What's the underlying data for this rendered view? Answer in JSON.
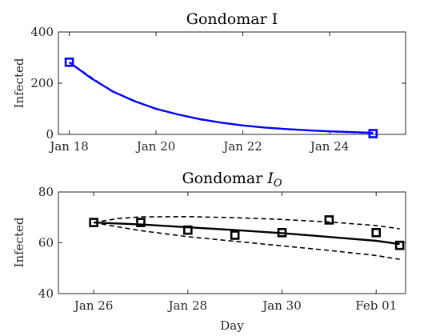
{
  "chart_data": [
    {
      "type": "line",
      "title": "Gondomar I",
      "xlabel": "",
      "ylabel": "Infected",
      "ylim": [
        0,
        400
      ],
      "yticks": [
        0,
        200,
        400
      ],
      "x_is_date": true,
      "xlim": [
        "2021-01-17T18:00",
        "2021-01-25T18:00"
      ],
      "xticks": [
        {
          "date": "2021-01-18",
          "label": "Jan 18"
        },
        {
          "date": "2021-01-20",
          "label": "Jan 20"
        },
        {
          "date": "2021-01-22",
          "label": "Jan 22"
        },
        {
          "date": "2021-01-24",
          "label": "Jan 24"
        }
      ],
      "series": [
        {
          "style": "solid",
          "color": "#0000ff",
          "points": [
            {
              "x": "2021-01-18T00:00",
              "y": 282
            },
            {
              "x": "2021-01-18T12:00",
              "y": 220
            },
            {
              "x": "2021-01-19T00:00",
              "y": 168
            },
            {
              "x": "2021-01-19T12:00",
              "y": 130
            },
            {
              "x": "2021-01-20T00:00",
              "y": 100
            },
            {
              "x": "2021-01-20T12:00",
              "y": 78
            },
            {
              "x": "2021-01-21T00:00",
              "y": 60
            },
            {
              "x": "2021-01-21T12:00",
              "y": 46
            },
            {
              "x": "2021-01-22T00:00",
              "y": 35
            },
            {
              "x": "2021-01-22T12:00",
              "y": 27
            },
            {
              "x": "2021-01-23T00:00",
              "y": 21
            },
            {
              "x": "2021-01-23T12:00",
              "y": 16
            },
            {
              "x": "2021-01-24T00:00",
              "y": 12
            },
            {
              "x": "2021-01-24T12:00",
              "y": 9
            },
            {
              "x": "2021-01-25T00:00",
              "y": 6
            }
          ]
        },
        {
          "style": "dashed",
          "color": "#0000ff",
          "points": [
            {
              "x": "2021-01-18T00:00",
              "y": 282
            },
            {
              "x": "2021-01-19T00:00",
              "y": 166
            },
            {
              "x": "2021-01-20T00:00",
              "y": 98
            },
            {
              "x": "2021-01-21T00:00",
              "y": 58
            },
            {
              "x": "2021-01-22T00:00",
              "y": 34
            },
            {
              "x": "2021-01-23T00:00",
              "y": 20
            },
            {
              "x": "2021-01-24T00:00",
              "y": 11
            },
            {
              "x": "2021-01-25T00:00",
              "y": 4
            }
          ]
        },
        {
          "style": "markers",
          "marker": "square",
          "color": "#0000ff",
          "points": [
            {
              "x": "2021-01-18T00:00",
              "y": 282
            },
            {
              "x": "2021-01-25T00:00",
              "y": 3
            }
          ]
        }
      ]
    },
    {
      "type": "line",
      "title": "Gondomar",
      "title_math": "I_O",
      "xlabel": "Day",
      "ylabel": "Infected",
      "ylim": [
        40,
        80
      ],
      "yticks": [
        40,
        60,
        80
      ],
      "x_is_date": true,
      "xlim": [
        "2021-01-25T06:00",
        "2021-02-01T15:00"
      ],
      "xticks": [
        {
          "date": "2021-01-26",
          "label": "Jan 26"
        },
        {
          "date": "2021-01-28",
          "label": "Jan 28"
        },
        {
          "date": "2021-01-30",
          "label": "Jan 30"
        },
        {
          "date": "2021-02-01",
          "label": "Feb 01"
        }
      ],
      "series": [
        {
          "style": "solid",
          "color": "#000000",
          "points": [
            {
              "x": "2021-01-26T00:00",
              "y": 68
            },
            {
              "x": "2021-01-27T00:00",
              "y": 67.2
            },
            {
              "x": "2021-01-28T00:00",
              "y": 66.1
            },
            {
              "x": "2021-01-29T00:00",
              "y": 65
            },
            {
              "x": "2021-01-30T00:00",
              "y": 63.8
            },
            {
              "x": "2021-01-31T00:00",
              "y": 62.3
            },
            {
              "x": "2021-02-01T00:00",
              "y": 60.8
            },
            {
              "x": "2021-02-01T12:00",
              "y": 59.5
            }
          ]
        },
        {
          "style": "dashed",
          "color": "#000000",
          "points": [
            {
              "x": "2021-01-26T00:00",
              "y": 68
            },
            {
              "x": "2021-01-26T12:00",
              "y": 69.5
            },
            {
              "x": "2021-01-27T00:00",
              "y": 70.2
            },
            {
              "x": "2021-01-28T00:00",
              "y": 70.3
            },
            {
              "x": "2021-01-29T00:00",
              "y": 69.9
            },
            {
              "x": "2021-01-30T00:00",
              "y": 69.2
            },
            {
              "x": "2021-01-31T00:00",
              "y": 68.2
            },
            {
              "x": "2021-02-01T00:00",
              "y": 66.8
            },
            {
              "x": "2021-02-01T12:00",
              "y": 65.5
            }
          ]
        },
        {
          "style": "dashed",
          "color": "#000000",
          "points": [
            {
              "x": "2021-01-26T00:00",
              "y": 68
            },
            {
              "x": "2021-01-26T12:00",
              "y": 66.3
            },
            {
              "x": "2021-01-27T00:00",
              "y": 64.8
            },
            {
              "x": "2021-01-28T00:00",
              "y": 62.4
            },
            {
              "x": "2021-01-29T00:00",
              "y": 60.6
            },
            {
              "x": "2021-01-30T00:00",
              "y": 58.8
            },
            {
              "x": "2021-01-31T00:00",
              "y": 57
            },
            {
              "x": "2021-02-01T00:00",
              "y": 55
            },
            {
              "x": "2021-02-01T12:00",
              "y": 53.5
            }
          ]
        },
        {
          "style": "markers",
          "marker": "square",
          "color": "#000000",
          "points": [
            {
              "x": "2021-01-26T00:00",
              "y": 68
            },
            {
              "x": "2021-01-27T00:00",
              "y": 68
            },
            {
              "x": "2021-01-28T00:00",
              "y": 65
            },
            {
              "x": "2021-01-29T00:00",
              "y": 63
            },
            {
              "x": "2021-01-30T00:00",
              "y": 64
            },
            {
              "x": "2021-01-31T00:00",
              "y": 69
            },
            {
              "x": "2021-02-01T00:00",
              "y": 64
            },
            {
              "x": "2021-02-01T12:00",
              "y": 59
            }
          ]
        }
      ]
    }
  ]
}
